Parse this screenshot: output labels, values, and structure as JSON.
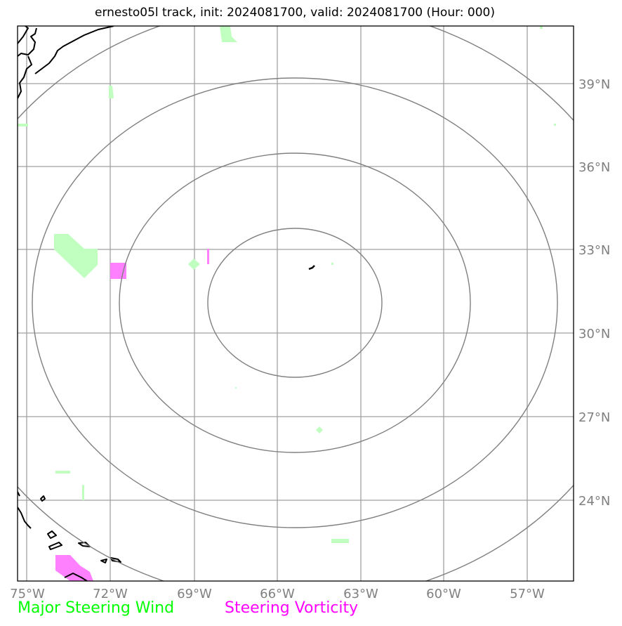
{
  "title": "ernesto05l track, init: 2024081700, valid: 2024081700 (Hour: 000)",
  "map": {
    "lon_labels": [
      "75°W",
      "72°W",
      "69°W",
      "66°W",
      "63°W",
      "60°W",
      "57°W"
    ],
    "lat_labels": [
      "39°N",
      "36°N",
      "33°N",
      "30°N",
      "27°N",
      "24°N"
    ],
    "colors": {
      "frame": "#000000",
      "gridline": "#a0a0a0",
      "range_ring": "#808080",
      "coastline": "#000000",
      "steering_wind": "#c0ffc0",
      "steering_vorticity": "#ff80ff"
    }
  },
  "legend": {
    "wind": {
      "label": "Major Steering Wind",
      "color": "#00ff00"
    },
    "vorticity": {
      "label": "Steering Vorticity",
      "color": "#ff00ff"
    }
  }
}
